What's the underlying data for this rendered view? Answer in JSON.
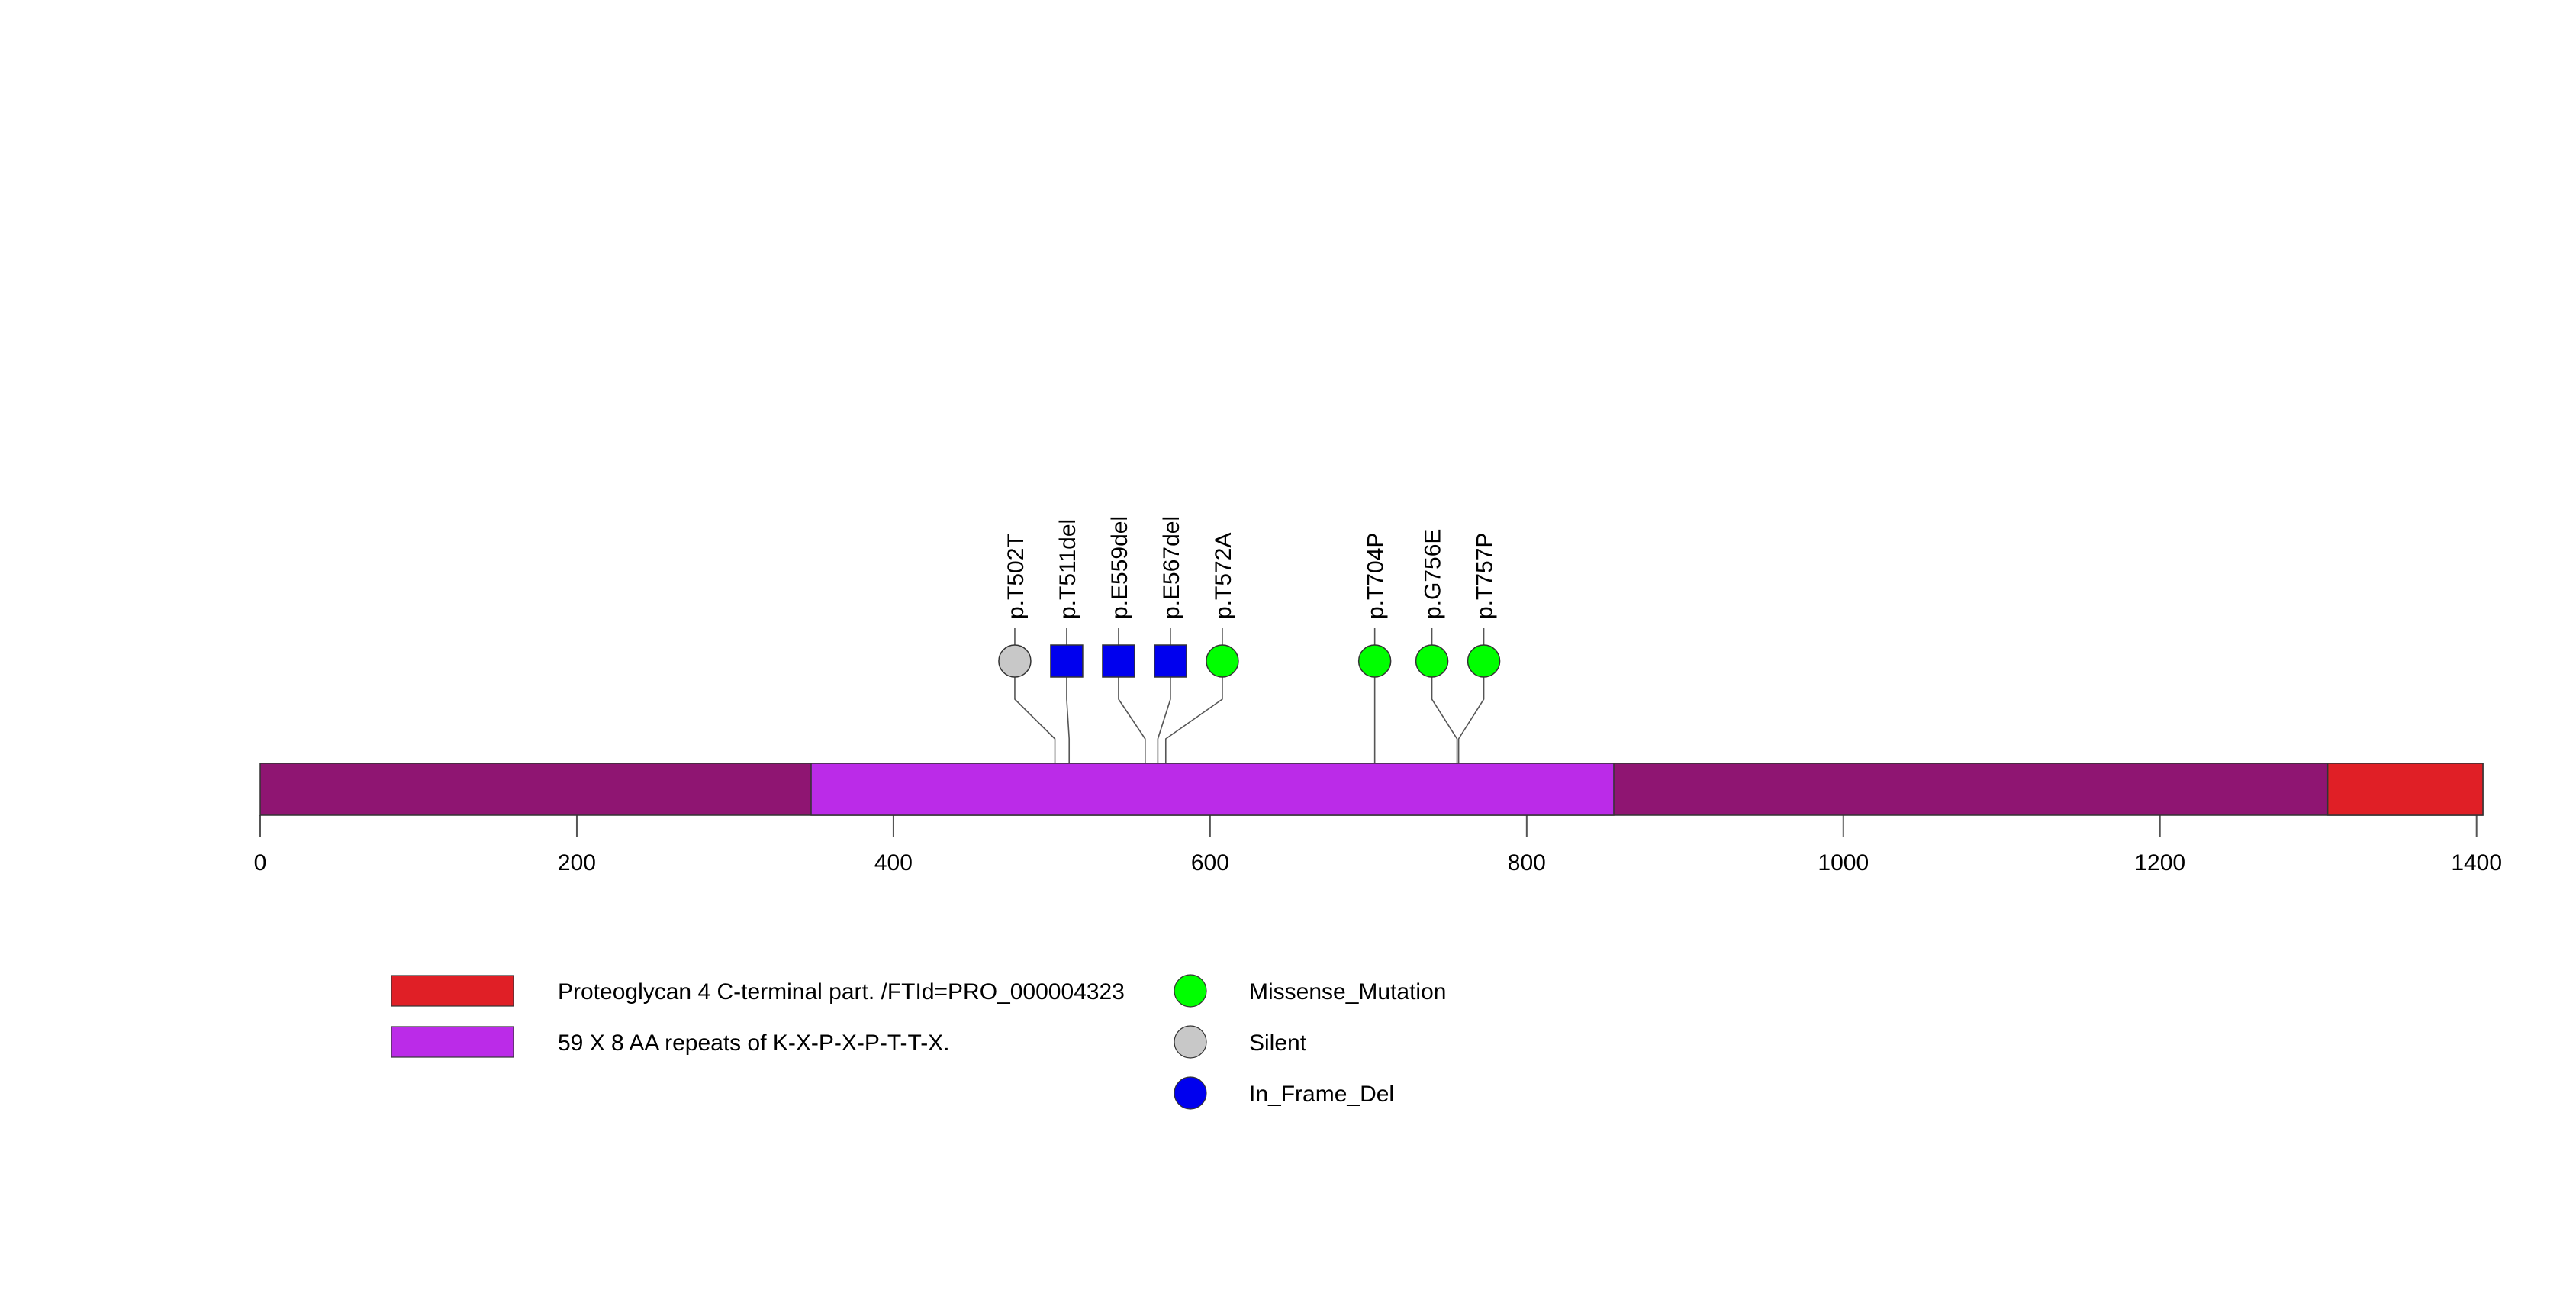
{
  "chart_data": {
    "type": "lollipop",
    "title": "",
    "xlabel": "",
    "ylabel": "",
    "protein_length": 1404,
    "xlim": [
      0,
      1404
    ],
    "x_ticks": [
      0,
      200,
      400,
      600,
      800,
      1000,
      1200,
      1400
    ],
    "backbone_color": "#8f1572",
    "domains": [
      {
        "name": "59 X 8 AA repeats of K-X-P-X-P-T-T-X.",
        "start": 348,
        "end": 855,
        "color": "#bb2be8"
      },
      {
        "name": "Proteoglycan 4 C-terminal part. /FTId=PRO_000004323",
        "start": 1306,
        "end": 1404,
        "color": "#e01f26"
      }
    ],
    "mutations": [
      {
        "label": "p.T502T",
        "position": 502,
        "type": "Silent"
      },
      {
        "label": "p.T511del",
        "position": 511,
        "type": "In_Frame_Del"
      },
      {
        "label": "p.E559del",
        "position": 559,
        "type": "In_Frame_Del"
      },
      {
        "label": "p.E567del",
        "position": 567,
        "type": "In_Frame_Del"
      },
      {
        "label": "p.T572A",
        "position": 572,
        "type": "Missense_Mutation"
      },
      {
        "label": "p.T704P",
        "position": 704,
        "type": "Missense_Mutation"
      },
      {
        "label": "p.G756E",
        "position": 756,
        "type": "Missense_Mutation"
      },
      {
        "label": "p.T757P",
        "position": 757,
        "type": "Missense_Mutation"
      }
    ],
    "mutation_types": [
      {
        "name": "Missense_Mutation",
        "color": "#00ff00",
        "shape": "circle"
      },
      {
        "name": "Silent",
        "color": "#c8c8c8",
        "shape": "circle"
      },
      {
        "name": "In_Frame_Del",
        "color": "#0000ee",
        "shape": "square"
      }
    ],
    "legend": {
      "domains": [
        {
          "label": "Proteoglycan 4 C-terminal part. /FTId=PRO_000004323",
          "color": "#e01f26"
        },
        {
          "label": "59 X 8 AA repeats of K-X-P-X-P-T-T-X.",
          "color": "#bb2be8"
        }
      ],
      "mutations": [
        {
          "label": "Missense_Mutation",
          "color": "#00ff00"
        },
        {
          "label": "Silent",
          "color": "#c8c8c8"
        },
        {
          "label": "In_Frame_Del",
          "color": "#0000ee"
        }
      ]
    }
  }
}
